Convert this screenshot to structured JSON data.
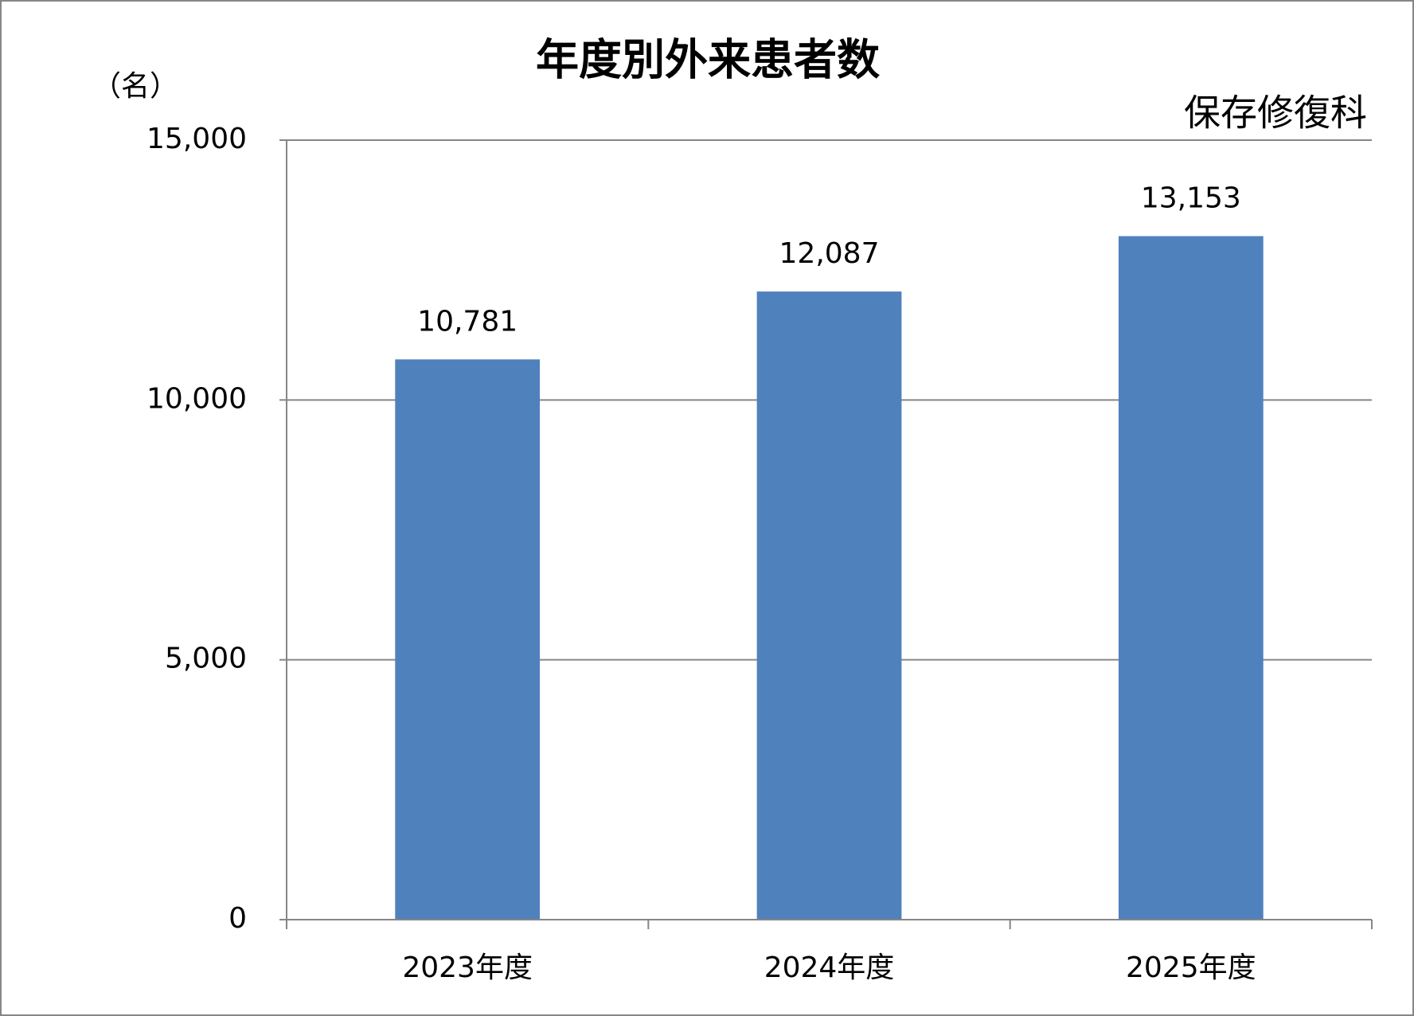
{
  "chart_data": {
    "type": "bar",
    "title": "年度別外来患者数",
    "y_unit_label": "（名）",
    "subtitle": "保存修復科",
    "categories": [
      "2023年度",
      "2024年度",
      "2025年度"
    ],
    "values": [
      10781,
      12087,
      13153
    ],
    "value_labels": [
      "10,781",
      "12,087",
      "13,153"
    ],
    "color": "#4f81bd",
    "ylim": [
      0,
      15000
    ],
    "yticks": [
      0,
      {
        "value": 5000,
        "label": "5,000"
      },
      {
        "value": 10000,
        "label": "10,000"
      },
      {
        "value": 15000,
        "label": "15,000"
      }
    ],
    "grid": true
  }
}
